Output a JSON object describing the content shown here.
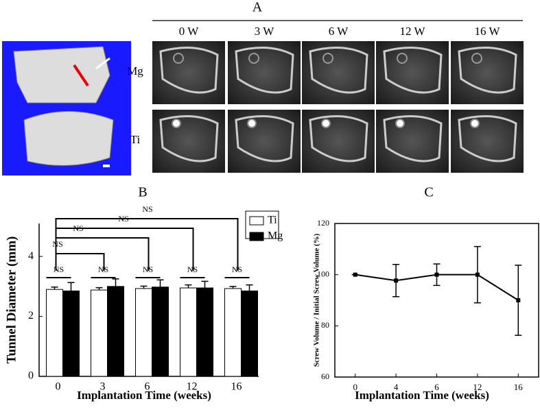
{
  "panel_a": {
    "label": "A",
    "columns": [
      "0 W",
      "3 W",
      "6 W",
      "12 W",
      "16 W"
    ],
    "rows": [
      "Mg",
      "Ti"
    ]
  },
  "chart_data": [
    {
      "type": "bar",
      "panel_label": "B",
      "xlabel": "Implantation Time (weeks)",
      "ylabel": "Tunnel Diameter (mm)",
      "categories": [
        "0",
        "3",
        "6",
        "12",
        "16"
      ],
      "series": [
        {
          "name": "Ti",
          "color": "#ffffff",
          "values": [
            2.9,
            2.88,
            2.93,
            2.95,
            2.93
          ],
          "errors": [
            0.08,
            0.08,
            0.08,
            0.1,
            0.07
          ]
        },
        {
          "name": "Mg",
          "color": "#000000",
          "values": [
            2.85,
            3.0,
            2.98,
            2.95,
            2.85
          ],
          "errors": [
            0.28,
            0.25,
            0.24,
            0.22,
            0.2
          ]
        }
      ],
      "ylim": [
        0,
        5.1
      ],
      "yticks": [
        0,
        2,
        4
      ],
      "legend": "top-right",
      "annotations": [
        "NS",
        "NS",
        "NS",
        "NS",
        "NS",
        "NS",
        "NS",
        "NS",
        "NS"
      ]
    },
    {
      "type": "line",
      "panel_label": "C",
      "xlabel": "Implantation Time (weeks)",
      "ylabel": "Screw Volume / Initial Screw Volume (%)",
      "categories": [
        "0",
        "4",
        "6",
        "12",
        "16"
      ],
      "series": [
        {
          "name": "Screw Volume",
          "color": "#000000",
          "values": [
            100,
            97.7,
            100,
            100,
            90
          ],
          "errors": [
            0,
            6.3,
            4.2,
            11,
            13.7
          ]
        }
      ],
      "ylim": [
        60,
        120
      ],
      "yticks": [
        60,
        80,
        100,
        120
      ]
    }
  ]
}
